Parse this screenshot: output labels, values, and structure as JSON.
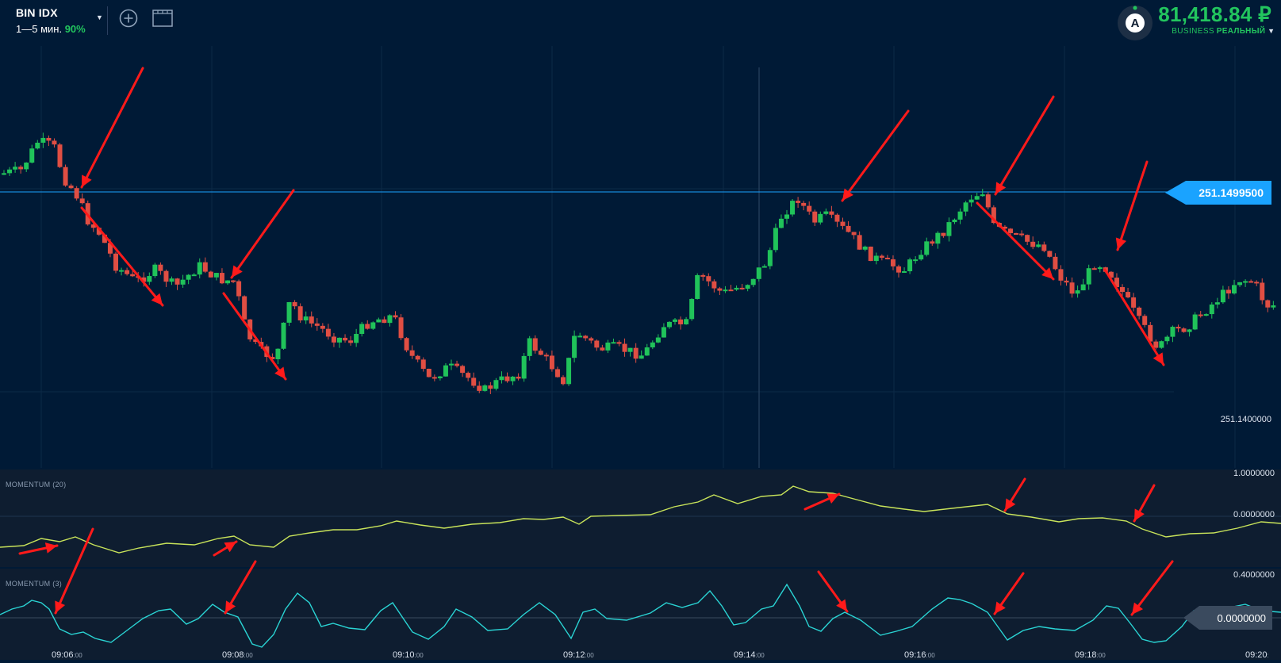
{
  "header": {
    "asset_name": "BIN IDX",
    "expiry": "1—5 мин.",
    "payout": "90%",
    "add_icon": "plus-circle-icon",
    "layout_icon": "chart-layout-icon"
  },
  "account": {
    "avatar_letter": "A",
    "balance": "81,418.84 ₽",
    "type_tag": "BUSINESS",
    "mode": "РЕАЛЬНЫЙ"
  },
  "price_scale": {
    "current_price": "251.1499500",
    "low_tick": "251.1400000"
  },
  "indicators": [
    {
      "name": "MOMENTUM (20)",
      "ticks": [
        "1.0000000",
        "0.0000000"
      ]
    },
    {
      "name": "MOMENTUM (3)",
      "ticks": [
        "0.4000000",
        "0.0000000"
      ]
    }
  ],
  "time_axis": [
    {
      "time": "09:06",
      "sec": ":00"
    },
    {
      "time": "09:08",
      "sec": ":00"
    },
    {
      "time": "09:10",
      "sec": ":00"
    },
    {
      "time": "09:12",
      "sec": ":00"
    },
    {
      "time": "09:14",
      "sec": ":00"
    },
    {
      "time": "09:16",
      "sec": ":00"
    },
    {
      "time": "09:18",
      "sec": ":00"
    },
    {
      "time": "09:20",
      "sec": ":"
    }
  ],
  "colors": {
    "background": "#001a36",
    "indicator_background": "#0e1d30",
    "up_candle": "#20c35a",
    "down_candle": "#e04e43",
    "price_line": "#1aa3ff",
    "momentum20_line": "#c8e35a",
    "momentum3_line": "#2ad4d4",
    "annotation_arrow": "#ff1a1a",
    "balance_green": "#22c55e"
  }
}
